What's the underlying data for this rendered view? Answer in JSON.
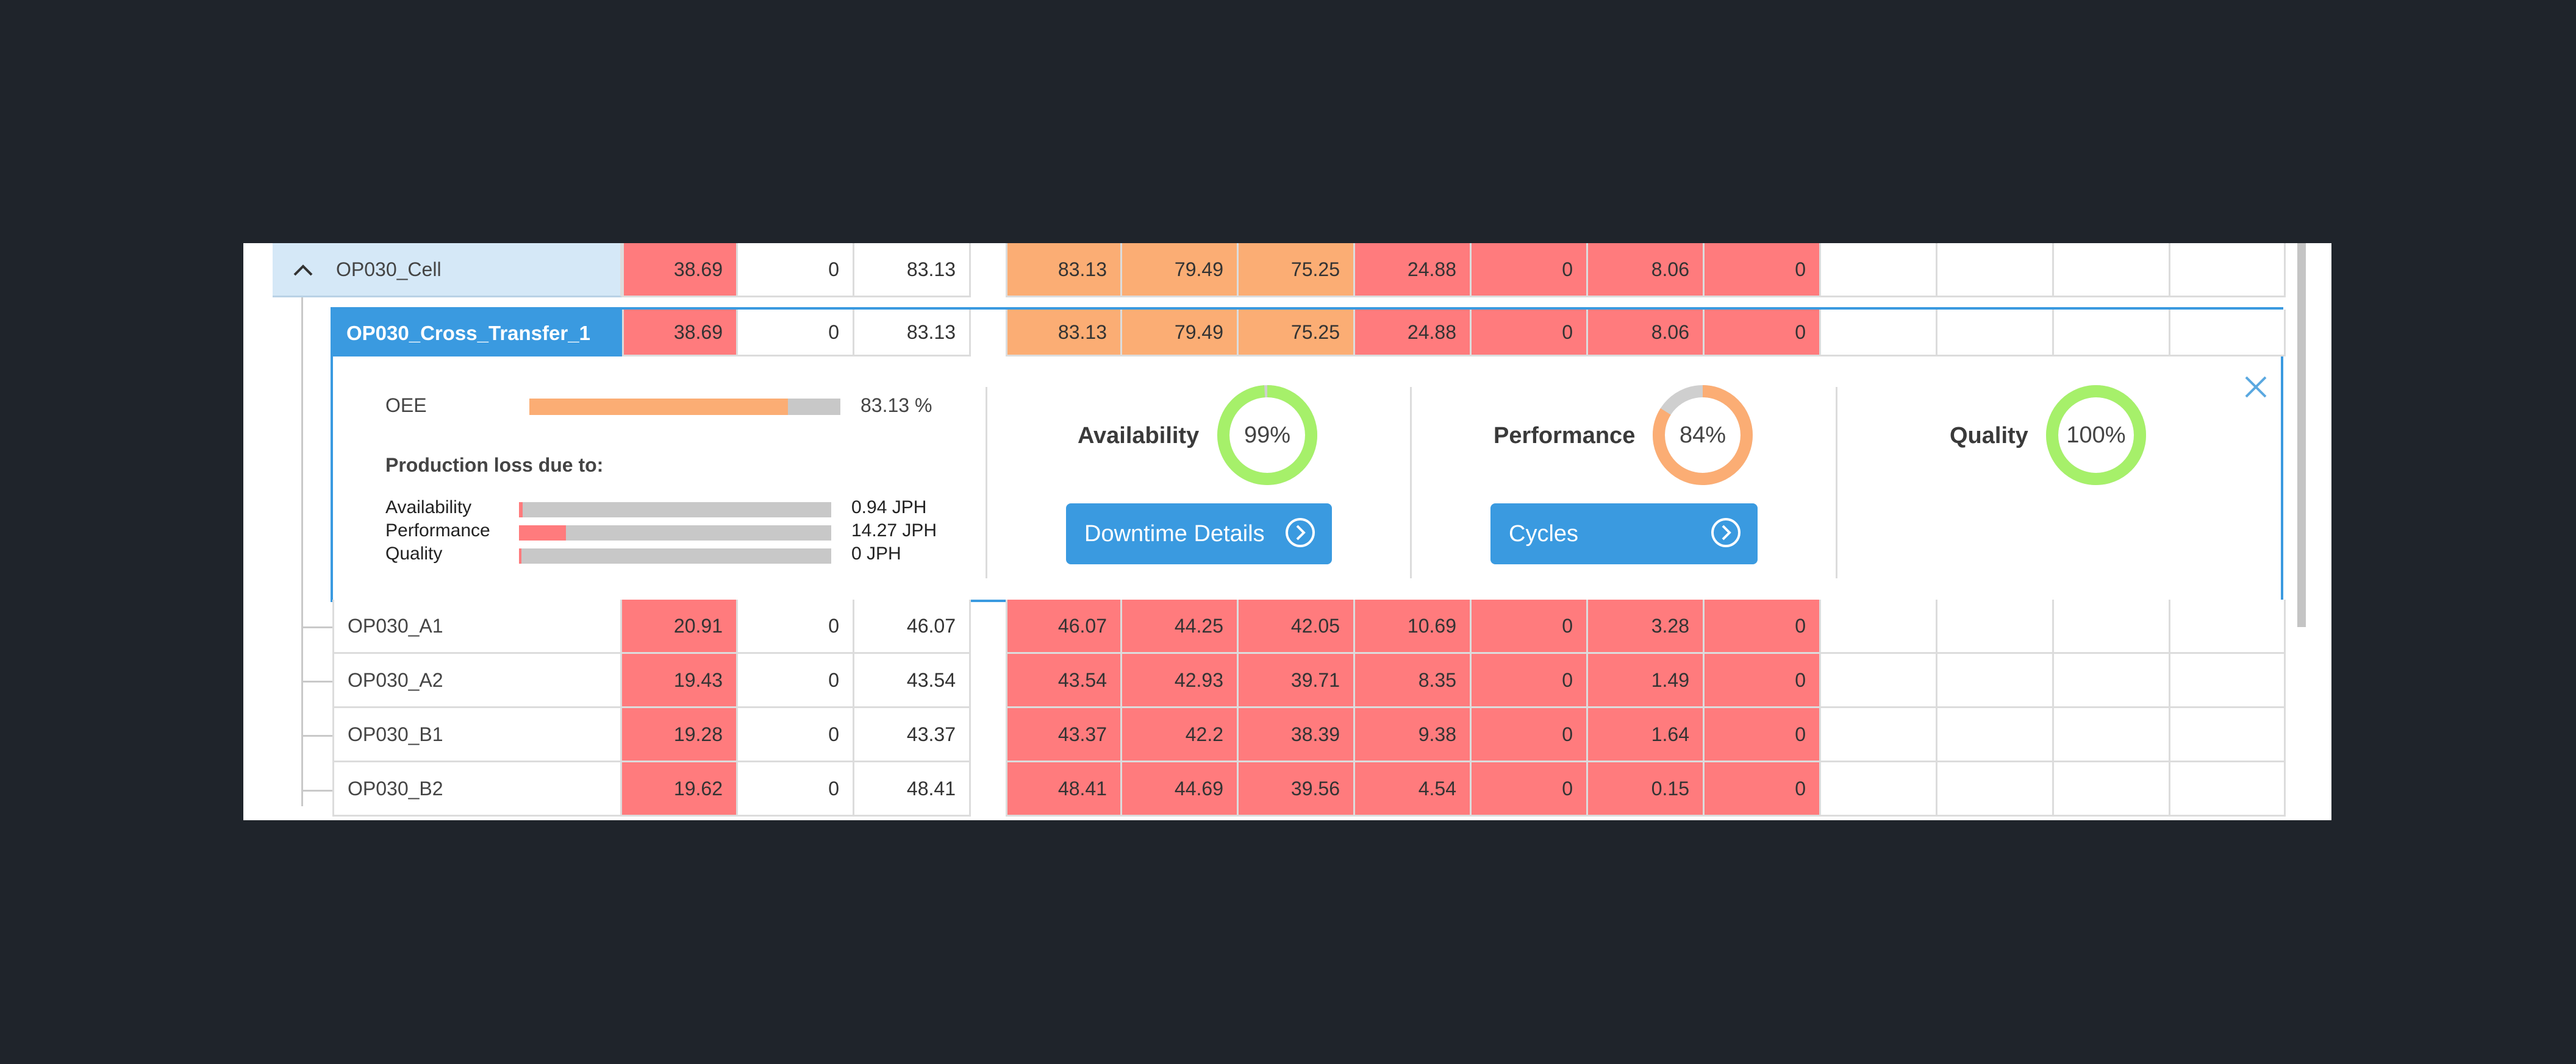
{
  "colors": {
    "red": "#ff7b7d",
    "orange": "#fbad74",
    "blue": "#3a9ae0",
    "green": "#a6f06a",
    "gray": "#c8c8c8"
  },
  "parent_row": {
    "name": "OP030_Cell",
    "chevron_icon": "chevron-up-icon",
    "cells": [
      "38.69",
      "0",
      "83.13",
      "83.13",
      "79.49",
      "75.25",
      "24.88",
      "0",
      "8.06",
      "0",
      "",
      "",
      "",
      ""
    ]
  },
  "selected_row": {
    "name": "OP030_Cross_Transfer_1",
    "dot_icon": "status-dot-icon",
    "cells": [
      "38.69",
      "0",
      "83.13",
      "83.13",
      "79.49",
      "75.25",
      "24.88",
      "0",
      "8.06",
      "0",
      "",
      "",
      "",
      ""
    ]
  },
  "detail": {
    "oee_label": "OEE",
    "oee_value": "83.13 %",
    "oee_fraction": 0.8313,
    "loss_title": "Production loss due to:",
    "losses": [
      {
        "label": "Availability",
        "value": "0.94 JPH",
        "fraction": 0.012
      },
      {
        "label": "Performance",
        "value": "14.27 JPH",
        "fraction": 0.15
      },
      {
        "label": "Quality",
        "value": "0 JPH",
        "fraction": 0.0
      }
    ],
    "availability": {
      "label": "Availability",
      "value": "99%",
      "fraction": 0.99,
      "button": "Downtime Details",
      "button_icon": "chevron-right-circle-icon"
    },
    "performance": {
      "label": "Performance",
      "value": "84%",
      "fraction": 0.84,
      "button": "Cycles",
      "button_icon": "chevron-right-circle-icon"
    },
    "quality": {
      "label": "Quality",
      "value": "100%",
      "fraction": 1.0
    },
    "close_icon": "close-icon"
  },
  "child_rows": [
    {
      "name": "OP030_A1",
      "cells": [
        "20.91",
        "0",
        "46.07",
        "46.07",
        "44.25",
        "42.05",
        "10.69",
        "0",
        "3.28",
        "0",
        "",
        "",
        "",
        ""
      ]
    },
    {
      "name": "OP030_A2",
      "cells": [
        "19.43",
        "0",
        "43.54",
        "43.54",
        "42.93",
        "39.71",
        "8.35",
        "0",
        "1.49",
        "0",
        "",
        "",
        "",
        ""
      ]
    },
    {
      "name": "OP030_B1",
      "cells": [
        "19.28",
        "0",
        "43.37",
        "43.37",
        "42.2",
        "38.39",
        "9.38",
        "0",
        "1.64",
        "0",
        "",
        "",
        "",
        ""
      ]
    },
    {
      "name": "OP030_B2",
      "cells": [
        "19.62",
        "0",
        "48.41",
        "48.41",
        "44.69",
        "39.56",
        "4.54",
        "0",
        "0.15",
        "0",
        "",
        "",
        "",
        ""
      ]
    }
  ]
}
